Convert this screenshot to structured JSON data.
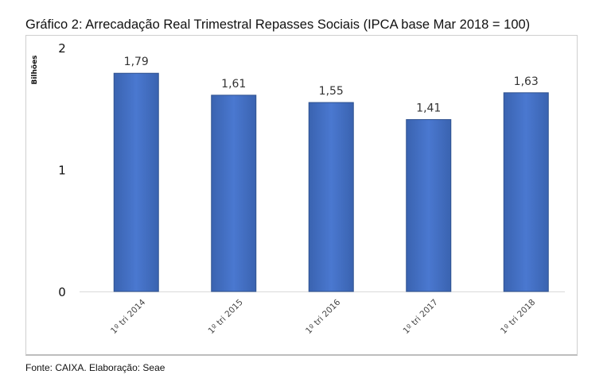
{
  "chart_data": {
    "type": "bar",
    "title": "Gráfico 2: Arrecadação Real Trimestral Repasses Sociais (IPCA base Mar 2018 = 100)",
    "xlabel": "",
    "ylabel": "Bilhões",
    "categories": [
      "1º tri 2014",
      "1º tri 2015",
      "1º tri 2016",
      "1º tri 2017",
      "1º tri 2018"
    ],
    "values": [
      1.79,
      1.61,
      1.55,
      1.41,
      1.63
    ],
    "value_labels": [
      "1,79",
      "1,61",
      "1,55",
      "1,41",
      "1,63"
    ],
    "ylim": [
      0,
      2
    ],
    "yticks": [
      "0",
      "1",
      "2"
    ],
    "grid": false,
    "bar_color": "#4472c4",
    "source": "Fonte: CAIXA. Elaboração: Seae"
  }
}
